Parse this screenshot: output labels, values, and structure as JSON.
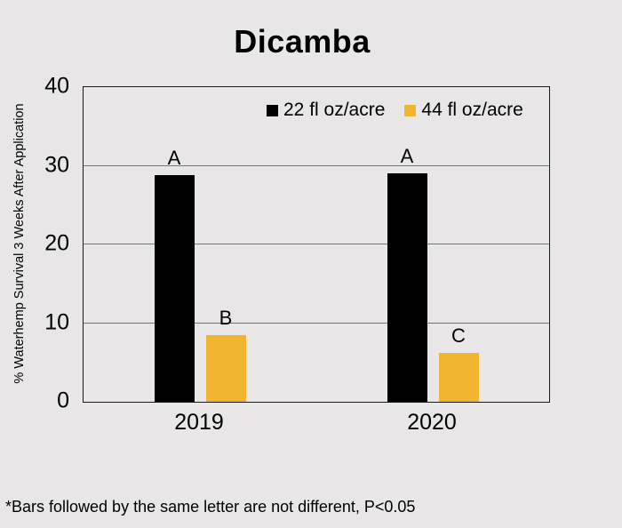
{
  "page": {
    "background": "#E8E6E7"
  },
  "chart_data": {
    "type": "bar",
    "title": "Dicamba",
    "xlabel": "",
    "ylabel": "% Waterhemp Survival 3 Weeks After Application",
    "ylim": [
      0,
      40
    ],
    "yticks": [
      0,
      10,
      20,
      30,
      40
    ],
    "grid": true,
    "legend_position": "inside-top-center",
    "categories": [
      "2019",
      "2020"
    ],
    "series": [
      {
        "name": "22 fl oz/acre",
        "color": "#000000",
        "values": [
          28.8,
          29.0
        ],
        "letters": [
          "A",
          "A"
        ]
      },
      {
        "name": "44 fl oz/acre",
        "color": "#F0B42E",
        "values": [
          8.5,
          6.2
        ],
        "letters": [
          "B",
          "C"
        ]
      }
    ],
    "style": {
      "gridline_color": "#757575",
      "axis_border_color": "#1A1A1A",
      "text_color": "#000000"
    }
  },
  "footnote": "*Bars followed by the same letter are not different, P<0.05"
}
